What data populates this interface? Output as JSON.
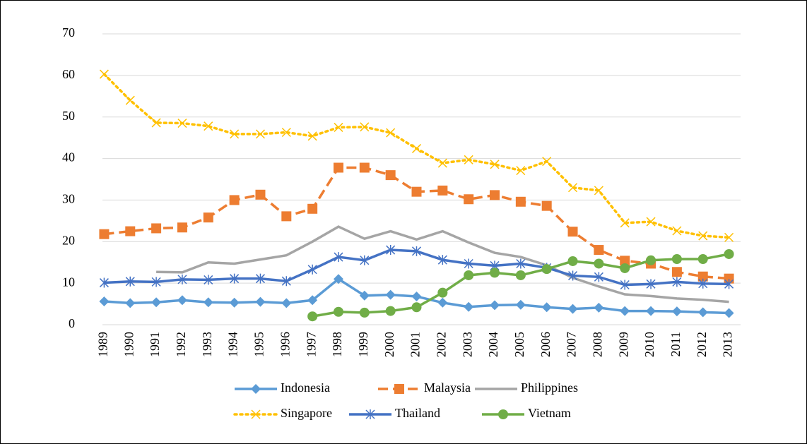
{
  "chart_data": {
    "type": "line",
    "categories": [
      "1989",
      "1990",
      "1991",
      "1992",
      "1993",
      "1994",
      "1995",
      "1996",
      "1997",
      "1998",
      "1999",
      "2000",
      "2001",
      "2002",
      "2003",
      "2004",
      "2005",
      "2006",
      "2007",
      "2008",
      "2009",
      "2010",
      "2011",
      "2012",
      "2013"
    ],
    "series": [
      {
        "name": "Indonesia",
        "color": "#5b9bd5",
        "marker": "diamond",
        "dash": "solid",
        "values": [
          5.6,
          5.2,
          5.4,
          5.9,
          5.4,
          5.3,
          5.5,
          5.2,
          5.9,
          11.0,
          7.0,
          7.2,
          6.8,
          5.3,
          4.3,
          4.7,
          4.8,
          4.2,
          3.8,
          4.1,
          3.3,
          3.3,
          3.2,
          3.0,
          2.8
        ]
      },
      {
        "name": "Malaysia",
        "color": "#ed7d31",
        "marker": "square",
        "dash": "dashed",
        "values": [
          21.8,
          22.5,
          23.2,
          23.4,
          25.8,
          30.0,
          31.3,
          26.1,
          27.9,
          37.8,
          37.8,
          36.0,
          32.0,
          32.3,
          30.2,
          31.2,
          29.6,
          28.6,
          22.4,
          18.0,
          15.4,
          14.7,
          12.7,
          11.6,
          11.1
        ]
      },
      {
        "name": "Philippines",
        "color": "#a5a5a5",
        "marker": "none",
        "dash": "solid",
        "values": [
          null,
          null,
          12.7,
          12.6,
          15.0,
          14.7,
          15.7,
          16.7,
          20.0,
          23.6,
          20.7,
          22.5,
          20.5,
          22.5,
          19.8,
          17.3,
          16.3,
          14.3,
          11.3,
          9.2,
          7.3,
          6.9,
          6.3,
          6.0,
          5.5
        ]
      },
      {
        "name": "Singapore",
        "color": "#ffc000",
        "marker": "x",
        "dash": "dotted",
        "values": [
          60.3,
          54.0,
          48.6,
          48.5,
          47.8,
          45.9,
          45.9,
          46.3,
          45.4,
          47.5,
          47.6,
          46.2,
          42.4,
          38.9,
          39.7,
          38.6,
          37.1,
          39.3,
          33.0,
          32.3,
          24.5,
          24.8,
          22.6,
          21.4,
          21.0
        ]
      },
      {
        "name": "Thailand",
        "color": "#4472c4",
        "marker": "star",
        "dash": "solid",
        "values": [
          10.1,
          10.4,
          10.3,
          10.9,
          10.8,
          11.1,
          11.1,
          10.5,
          13.3,
          16.3,
          15.5,
          18.0,
          17.7,
          15.6,
          14.7,
          14.2,
          14.7,
          13.7,
          11.8,
          11.5,
          9.6,
          9.8,
          10.3,
          9.9,
          9.8
        ]
      },
      {
        "name": "Vietnam",
        "color": "#70ad47",
        "marker": "circle",
        "dash": "solid",
        "values": [
          null,
          null,
          null,
          null,
          null,
          null,
          null,
          null,
          2.0,
          3.1,
          2.9,
          3.3,
          4.2,
          7.7,
          11.9,
          12.5,
          11.9,
          13.4,
          15.3,
          14.7,
          13.6,
          15.5,
          15.8,
          15.8,
          17.0
        ]
      }
    ],
    "ylim": [
      0,
      70
    ],
    "yticks": [
      0,
      10,
      20,
      30,
      40,
      50,
      60,
      70
    ],
    "grid": true,
    "legend": "bottom"
  }
}
